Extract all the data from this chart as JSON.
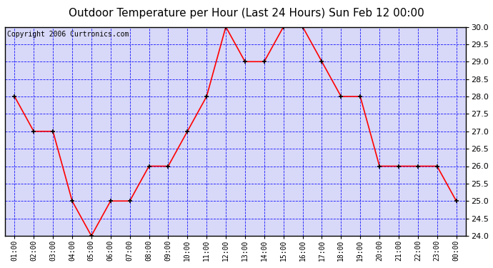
{
  "title": "Outdoor Temperature per Hour (Last 24 Hours) Sun Feb 12 00:00",
  "copyright": "Copyright 2006 Curtronics.com",
  "hours": [
    "01:00",
    "02:00",
    "03:00",
    "04:00",
    "05:00",
    "06:00",
    "07:00",
    "08:00",
    "09:00",
    "10:00",
    "11:00",
    "12:00",
    "13:00",
    "14:00",
    "15:00",
    "16:00",
    "17:00",
    "18:00",
    "19:00",
    "20:00",
    "21:00",
    "22:00",
    "23:00",
    "00:00"
  ],
  "values": [
    28.0,
    27.0,
    27.0,
    25.0,
    24.0,
    25.0,
    25.0,
    26.0,
    26.0,
    27.0,
    28.0,
    30.0,
    29.0,
    29.0,
    30.0,
    30.0,
    29.0,
    28.0,
    28.0,
    26.0,
    26.0,
    26.0,
    26.0,
    25.0
  ],
  "ylim": [
    24.0,
    30.0
  ],
  "ytick_step": 0.5,
  "line_color": "red",
  "marker": "+",
  "marker_color": "black",
  "grid_color": "blue",
  "bg_color": "white",
  "plot_bg_color": "#d8d8f8",
  "title_fontsize": 11,
  "copyright_fontsize": 7
}
